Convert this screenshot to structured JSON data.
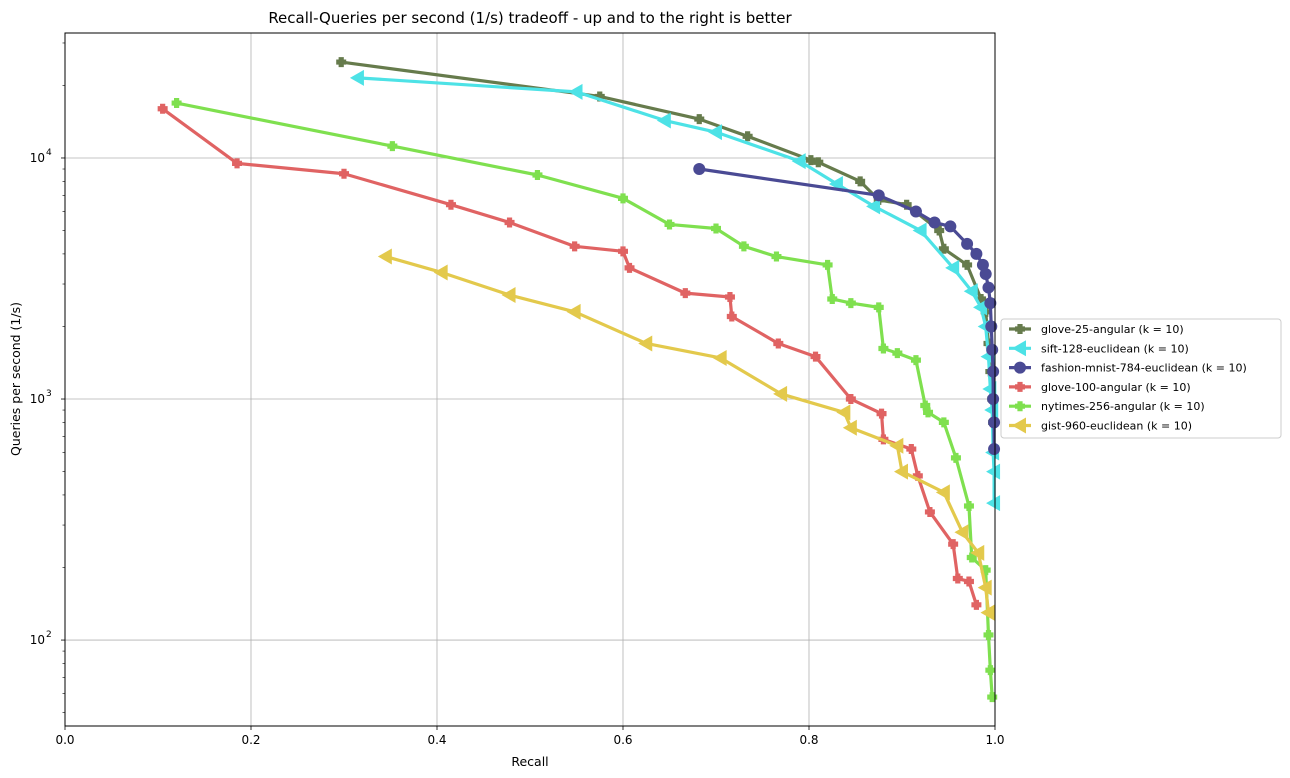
{
  "chart_data": {
    "type": "line",
    "title": "Recall-Queries per second (1/s) tradeoff - up and to the right is better",
    "xlabel": "Recall",
    "ylabel": "Queries per second (1/s)",
    "xlim": [
      0.0,
      1.0
    ],
    "ylim": [
      44,
      33000
    ],
    "yscale": "log",
    "grid": true,
    "legend_position": "center-right outside",
    "x_ticks": [
      "0.0",
      "0.2",
      "0.4",
      "0.6",
      "0.8",
      "1.0"
    ],
    "y_ticks": [
      {
        "value": 100,
        "label": "10",
        "exp": "2"
      },
      {
        "value": 1000,
        "label": "10",
        "exp": "3"
      },
      {
        "value": 10000,
        "label": "10",
        "exp": "4"
      }
    ],
    "series": [
      {
        "name": "glove-25-angular (k = 10)",
        "color": "#667b4c",
        "marker": "plus",
        "x": [
          0.297,
          0.575,
          0.682,
          0.734,
          0.802,
          0.81,
          0.855,
          0.875,
          0.905,
          0.94,
          0.945,
          0.97,
          0.985,
          0.99,
          0.993,
          0.995,
          0.997,
          0.998
        ],
        "y": [
          25000,
          18000,
          14500,
          12300,
          9800,
          9600,
          8000,
          6700,
          6400,
          5000,
          4200,
          3600,
          2600,
          2300,
          1700,
          1300,
          1000,
          800
        ]
      },
      {
        "name": "sift-128-euclidean (k = 10)",
        "color": "#4de2e6",
        "marker": "triangle-left",
        "x": [
          0.315,
          0.55,
          0.645,
          0.7,
          0.79,
          0.83,
          0.87,
          0.92,
          0.955,
          0.975,
          0.985,
          0.99,
          0.993,
          0.995,
          0.997,
          0.998,
          0.999,
          0.999
        ],
        "y": [
          21500,
          18800,
          14300,
          12800,
          9700,
          7800,
          6300,
          5000,
          3500,
          2800,
          2400,
          2000,
          1500,
          1100,
          900,
          600,
          500,
          370
        ]
      },
      {
        "name": "fashion-mnist-784-euclidean (k = 10)",
        "color": "#4a4a94",
        "marker": "circle",
        "x": [
          0.682,
          0.875,
          0.915,
          0.935,
          0.952,
          0.97,
          0.98,
          0.987,
          0.99,
          0.993,
          0.995,
          0.996,
          0.997,
          0.998,
          0.998,
          0.999,
          0.999
        ],
        "y": [
          9000,
          7000,
          6000,
          5400,
          5200,
          4400,
          4000,
          3600,
          3300,
          2900,
          2500,
          2000,
          1600,
          1300,
          1000,
          800,
          620
        ]
      },
      {
        "name": "glove-100-angular (k = 10)",
        "color": "#e06363",
        "marker": "plus",
        "x": [
          0.105,
          0.185,
          0.3,
          0.415,
          0.478,
          0.548,
          0.6,
          0.607,
          0.667,
          0.715,
          0.717,
          0.767,
          0.807,
          0.845,
          0.878,
          0.88,
          0.91,
          0.917,
          0.93,
          0.955,
          0.96,
          0.972,
          0.98
        ],
        "y": [
          16000,
          9500,
          8600,
          6400,
          5400,
          4300,
          4100,
          3500,
          2750,
          2650,
          2200,
          1700,
          1500,
          1000,
          870,
          680,
          620,
          480,
          340,
          250,
          180,
          175,
          140
        ]
      },
      {
        "name": "nytimes-256-angular (k = 10)",
        "color": "#7fe04f",
        "marker": "plus",
        "x": [
          0.12,
          0.352,
          0.508,
          0.6,
          0.65,
          0.7,
          0.73,
          0.765,
          0.82,
          0.825,
          0.845,
          0.875,
          0.88,
          0.895,
          0.915,
          0.925,
          0.928,
          0.945,
          0.958,
          0.972,
          0.975,
          0.99,
          0.993,
          0.995,
          0.997
        ],
        "y": [
          16900,
          11200,
          8500,
          6800,
          5300,
          5100,
          4300,
          3900,
          3600,
          2600,
          2500,
          2400,
          1620,
          1550,
          1450,
          940,
          880,
          800,
          570,
          360,
          220,
          195,
          105,
          75,
          58
        ]
      },
      {
        "name": "gist-960-euclidean (k = 10)",
        "color": "#e3c94c",
        "marker": "triangle-left",
        "x": [
          0.345,
          0.405,
          0.478,
          0.548,
          0.625,
          0.705,
          0.77,
          0.838,
          0.845,
          0.895,
          0.9,
          0.945,
          0.965,
          0.982,
          0.99,
          0.993
        ],
        "y": [
          3900,
          3350,
          2700,
          2300,
          1700,
          1480,
          1050,
          880,
          760,
          640,
          500,
          410,
          280,
          230,
          165,
          130
        ]
      }
    ]
  }
}
